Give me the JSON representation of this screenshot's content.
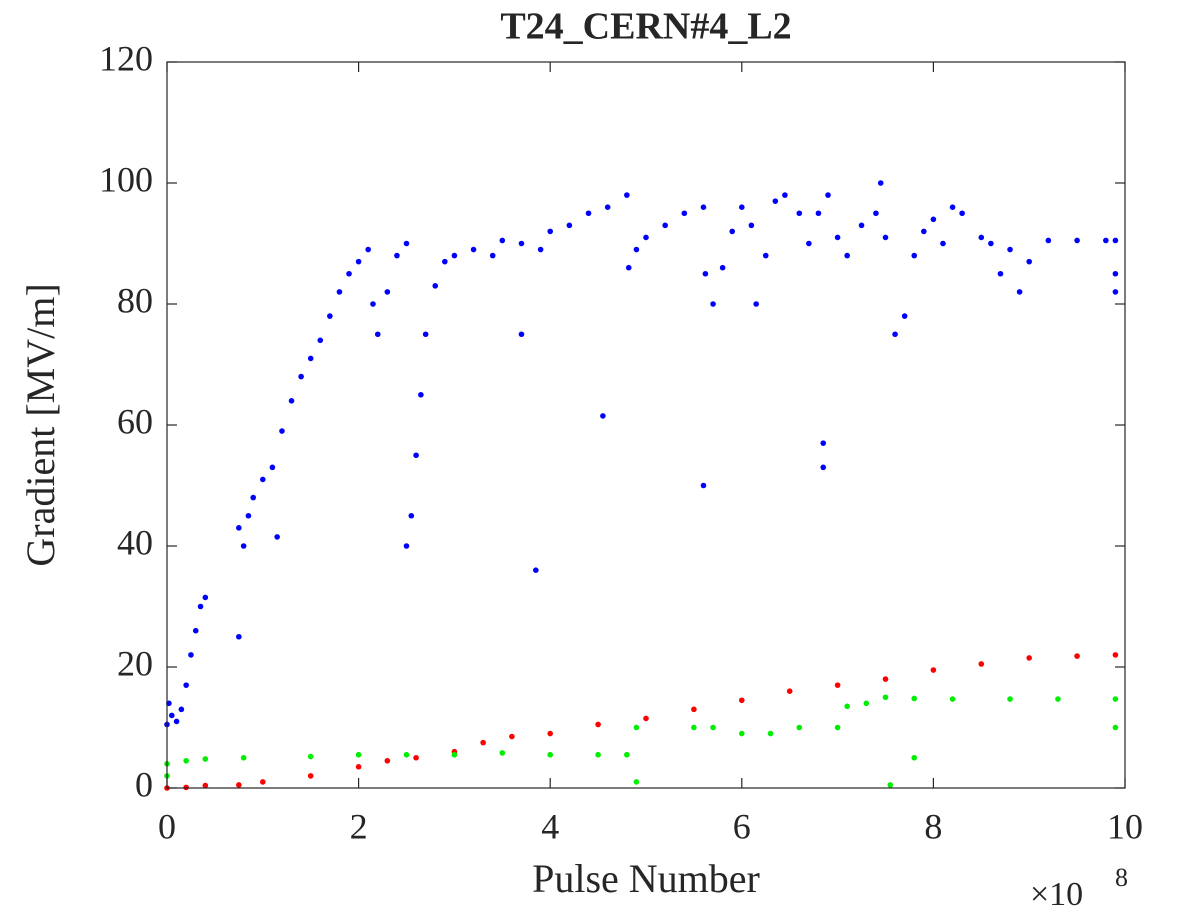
{
  "chart_data": {
    "type": "scatter",
    "title": "T24_CERN#4_L2",
    "x_label": "Pulse Number",
    "y_label": "Gradient [MV/m]",
    "x_scale_base": "×10",
    "x_scale_exponent": "8",
    "xlim": [
      0,
      10
    ],
    "xticks": [
      0,
      2,
      4,
      6,
      8,
      10
    ],
    "ylim": [
      0,
      120
    ],
    "yticks": [
      0,
      20,
      40,
      60,
      80,
      100,
      120
    ],
    "grid": false,
    "series": [
      {
        "color": "#0000ff",
        "x": [
          0,
          0.02,
          0.05,
          0.1,
          0.15,
          0.2,
          0.25,
          0.3,
          0.35,
          0.4,
          0.75,
          0.8,
          0.85,
          0.9,
          1.0,
          1.1,
          1.2,
          1.3,
          1.4,
          1.5,
          1.6,
          1.7,
          1.8,
          1.9,
          2.0,
          2.1,
          2.15,
          2.2,
          2.3,
          2.4,
          2.5,
          2.5,
          2.55,
          2.6,
          2.65,
          2.7,
          2.8,
          2.9,
          3.0,
          3.2,
          3.4,
          3.5,
          3.7,
          3.9,
          4.0,
          4.2,
          4.4,
          4.6,
          4.8,
          4.82,
          4.9,
          5.0,
          5.2,
          5.4,
          5.6,
          5.62,
          5.7,
          5.8,
          5.9,
          6.0,
          6.1,
          6.15,
          6.25,
          6.35,
          6.45,
          6.6,
          6.7,
          6.8,
          6.9,
          7.0,
          7.1,
          7.25,
          7.4,
          7.5,
          7.6,
          7.7,
          7.8,
          7.9,
          8.0,
          8.1,
          8.2,
          8.3,
          8.5,
          8.6,
          8.7,
          8.8,
          8.9,
          9.0,
          9.2,
          9.5,
          9.8,
          9.9,
          9.9,
          9.9,
          3.85,
          4.55,
          5.6,
          6.85,
          6.85,
          3.7,
          1.15,
          0.75,
          7.45
        ],
        "values": [
          10.5,
          14,
          12,
          11,
          13,
          17,
          22,
          26,
          30,
          31.5,
          43,
          40,
          45,
          48,
          51,
          53,
          59,
          64,
          68,
          71,
          74,
          78,
          82,
          85,
          87,
          89,
          80,
          75,
          82,
          88,
          90,
          40,
          45,
          55,
          65,
          75,
          83,
          87,
          88,
          89,
          88,
          90.5,
          90,
          89,
          92,
          93,
          95,
          96,
          98,
          86,
          89,
          91,
          93,
          95,
          96,
          85,
          80,
          86,
          92,
          96,
          93,
          80,
          88,
          97,
          98,
          95,
          90,
          95,
          98,
          91,
          88,
          93,
          95,
          91,
          75,
          78,
          88,
          92,
          94,
          90,
          96,
          95,
          91,
          90,
          85,
          89,
          82,
          87,
          90.5,
          90.5,
          90.5,
          90.5,
          85,
          82,
          36,
          61.5,
          50,
          57,
          53,
          75,
          41.5,
          25,
          100
        ]
      },
      {
        "color": "#ff0000",
        "x": [
          0,
          0.2,
          0.4,
          0.75,
          1,
          1.5,
          2,
          2.3,
          2.6,
          3,
          3.3,
          3.6,
          4,
          4.5,
          5,
          5.5,
          6,
          6.5,
          7,
          7.5,
          8,
          8.5,
          9,
          9.5,
          9.9
        ],
        "values": [
          0,
          0.1,
          0.4,
          0.5,
          1,
          2,
          3.5,
          4.5,
          5,
          6,
          7.5,
          8.5,
          9,
          10.5,
          11.5,
          13,
          14.5,
          16,
          17,
          18,
          19.5,
          20.5,
          21.5,
          21.8,
          22
        ]
      },
      {
        "color": "#00ee00",
        "x": [
          0,
          0.2,
          0.4,
          0.8,
          1.5,
          2,
          2.5,
          3,
          3.5,
          4,
          4.5,
          4.8,
          4.9,
          5.5,
          5.7,
          6.0,
          6.3,
          6.6,
          7.0,
          7.1,
          7.3,
          7.5,
          7.8,
          8.2,
          8.8,
          9.3,
          9.9,
          4.9,
          7.55,
          7.8,
          9.9,
          0
        ],
        "values": [
          4,
          4.5,
          4.8,
          5,
          5.2,
          5.5,
          5.5,
          5.5,
          5.8,
          5.5,
          5.5,
          5.5,
          10,
          10,
          10,
          9,
          9,
          10,
          10,
          13.5,
          14,
          15,
          14.8,
          14.7,
          14.7,
          14.7,
          14.7,
          1,
          0.5,
          5,
          10,
          2
        ]
      }
    ]
  }
}
